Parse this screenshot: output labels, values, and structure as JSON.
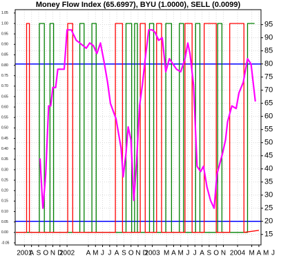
{
  "chart_data": {
    "type": "line",
    "title": "Money Flow Index (65.6997), BYU (1.0000), SELL (0.0099)",
    "xlim": [
      -1.3,
      33.3
    ],
    "xticks": [
      {
        "value": 0,
        "label": "2001"
      },
      {
        "value": 1,
        "label": "A"
      },
      {
        "value": 2,
        "label": "S"
      },
      {
        "value": 3,
        "label": "O"
      },
      {
        "value": 4,
        "label": "N"
      },
      {
        "value": 5,
        "label": "D"
      },
      {
        "value": 6,
        "label": "2002"
      },
      {
        "value": 9,
        "label": "A"
      },
      {
        "value": 10,
        "label": "M"
      },
      {
        "value": 11,
        "label": "J"
      },
      {
        "value": 12,
        "label": "J"
      },
      {
        "value": 13,
        "label": "A"
      },
      {
        "value": 14,
        "label": "S"
      },
      {
        "value": 15,
        "label": "O"
      },
      {
        "value": 16,
        "label": "N"
      },
      {
        "value": 17,
        "label": "D"
      },
      {
        "value": 18,
        "label": "2003"
      },
      {
        "value": 20,
        "label": "M"
      },
      {
        "value": 21,
        "label": "A"
      },
      {
        "value": 22,
        "label": "M"
      },
      {
        "value": 23,
        "label": "J"
      },
      {
        "value": 24,
        "label": "J"
      },
      {
        "value": 25,
        "label": "A"
      },
      {
        "value": 26,
        "label": "S"
      },
      {
        "value": 27,
        "label": "O"
      },
      {
        "value": 28,
        "label": "N"
      },
      {
        "value": 30,
        "label": "2004"
      },
      {
        "value": 32,
        "label": "M"
      },
      {
        "value": 33,
        "label": "A"
      },
      {
        "value": 34,
        "label": "M"
      },
      {
        "value": 35,
        "label": "J"
      }
    ],
    "ylim": [
      11,
      100.7
    ],
    "yticks": [
      15,
      20,
      25,
      30,
      35,
      40,
      45,
      50,
      55,
      60,
      65,
      70,
      75,
      80,
      85,
      90,
      95
    ],
    "y2lim": [
      -0.06,
      1.066
    ],
    "y2ticks": [
      {
        "value": -0.05,
        "label": "-0.05"
      },
      {
        "value": 0,
        "label": "0.00"
      },
      {
        "value": 0.05,
        "label": "0.05"
      },
      {
        "value": 0.1,
        "label": "0.10"
      },
      {
        "value": 0.15,
        "label": "0.15"
      },
      {
        "value": 0.2,
        "label": "0.20"
      },
      {
        "value": 0.25,
        "label": "0.25"
      },
      {
        "value": 0.3,
        "label": "0.30"
      },
      {
        "value": 0.35,
        "label": "0.35"
      },
      {
        "value": 0.4,
        "label": "0.40"
      },
      {
        "value": 0.45,
        "label": "0.45"
      },
      {
        "value": 0.5,
        "label": "0.50"
      },
      {
        "value": 0.55,
        "label": "0.55"
      },
      {
        "value": 0.6,
        "label": "0.60"
      },
      {
        "value": 0.65,
        "label": "0.65"
      },
      {
        "value": 0.7,
        "label": "0.70"
      },
      {
        "value": 0.75,
        "label": "0.75"
      },
      {
        "value": 0.8,
        "label": "0.80"
      },
      {
        "value": 0.85,
        "label": "0.85"
      },
      {
        "value": 0.9,
        "label": "0.90"
      },
      {
        "value": 0.95,
        "label": "0.95"
      },
      {
        "value": 1,
        "label": "1.00"
      },
      {
        "value": 1.05,
        "label": "1.05"
      }
    ],
    "reference_lines": [
      80,
      20
    ],
    "reference_color": "#0000ff",
    "grid": true,
    "series": [
      {
        "name": "BYU",
        "color": "#008000",
        "axis": "y2",
        "x": [
          -1.2,
          2.1,
          2.1,
          2.8,
          2.8,
          3.6,
          3.6,
          4.1,
          4.1,
          7.8,
          7.8,
          8.4,
          8.4,
          9.5,
          9.5,
          10.1,
          10.1,
          14.3,
          14.3,
          15.1,
          15.1,
          15.5,
          15.5,
          15.9,
          15.9,
          17.6,
          17.6,
          18.2,
          18.2,
          19.9,
          19.9,
          20.7,
          20.7,
          21.8,
          21.8,
          22.4,
          22.4,
          24.1,
          24.1,
          24.7,
          24.7,
          27.2,
          27.2,
          27.8,
          27.8,
          31.4,
          31.4,
          32.4
        ],
        "values": [
          0,
          0,
          1,
          1,
          0,
          0,
          1,
          1,
          0,
          0,
          1,
          1,
          0,
          0,
          1,
          1,
          0,
          0,
          1,
          1,
          0,
          0,
          1,
          1,
          0,
          0,
          1,
          1,
          0,
          0,
          1,
          1,
          0,
          0,
          1,
          1,
          0,
          0,
          1,
          1,
          0,
          0,
          1,
          1,
          0,
          0,
          1,
          1
        ]
      },
      {
        "name": "SELL",
        "color": "#ff0000",
        "axis": "y2",
        "x": [
          -1.2,
          0.3,
          0.3,
          0.7,
          0.7,
          6.1,
          6.1,
          6.8,
          6.8,
          12.8,
          12.8,
          13.8,
          13.8,
          16.3,
          16.3,
          17.0,
          17.0,
          18.6,
          18.6,
          19.3,
          19.3,
          22.6,
          22.6,
          23.6,
          23.6,
          25.3,
          25.3,
          27.0,
          27.0,
          28.9,
          28.9,
          30.9,
          30.9,
          33.0
        ],
        "values": [
          0,
          0,
          1,
          1,
          0,
          0,
          1,
          1,
          0,
          0,
          1,
          1,
          0,
          0,
          1,
          1,
          0,
          0,
          1,
          1,
          0,
          0,
          1,
          1,
          0,
          0,
          1,
          1,
          0,
          0,
          1,
          1,
          0,
          0.0099
        ]
      },
      {
        "name": "Money Flow Index",
        "color": "#ff00ff",
        "x": [
          2.2,
          2.6,
          3.0,
          3.4,
          3.7,
          4.0,
          4.4,
          4.7,
          5.1,
          5.6,
          6.0,
          6.6,
          7.3,
          7.8,
          8.7,
          9.2,
          9.7,
          10.2,
          10.7,
          11.2,
          11.7,
          12.1,
          12.9,
          13.6,
          13.9,
          14.3,
          14.6,
          15.0,
          15.4,
          15.8,
          16.2,
          16.6,
          17.0,
          17.5,
          18.0,
          18.4,
          18.9,
          19.4,
          19.9,
          20.4,
          20.9,
          21.4,
          22.0,
          22.6,
          23.0,
          23.3,
          23.8,
          24.3,
          24.8,
          25.2,
          25.7,
          26.2,
          26.7,
          27.1,
          27.5,
          27.9,
          28.3,
          28.6,
          29.2,
          29.8,
          30.2,
          30.8,
          31.4,
          31.9,
          32.5
        ],
        "values": [
          44,
          25,
          38,
          64,
          64,
          71,
          71,
          78,
          78,
          78,
          93,
          93,
          89,
          88,
          86,
          88,
          87,
          84,
          88,
          81,
          73,
          65,
          59,
          48,
          37,
          46,
          56,
          51,
          28,
          43,
          64,
          72,
          82,
          93,
          93,
          92,
          89,
          90,
          77,
          82,
          80,
          78,
          77,
          82,
          88,
          84,
          72,
          41,
          39,
          41,
          33,
          28,
          25,
          38,
          42,
          46,
          51,
          58,
          64,
          63,
          69,
          73,
          82,
          80,
          65.7
        ]
      }
    ]
  }
}
